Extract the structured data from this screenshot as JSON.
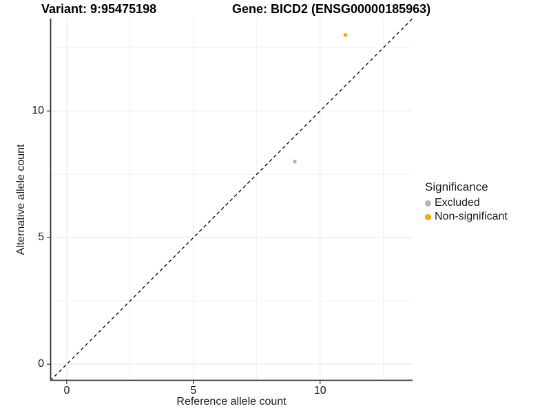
{
  "chart_data": {
    "type": "scatter",
    "title_left": "Variant: 9:95475198",
    "title_right": "Gene: BICD2 (ENSG00000185963)",
    "xlabel": "Reference allele count",
    "ylabel": "Alternative allele count",
    "xlim": [
      -0.65,
      13.65
    ],
    "ylim": [
      -0.65,
      13.65
    ],
    "x_ticks": [
      0,
      5,
      10
    ],
    "y_ticks": [
      0,
      5,
      10
    ],
    "major_gridlines": [
      0,
      5,
      10
    ],
    "minor_gridlines": [
      2.5,
      7.5,
      12.5
    ],
    "grid": true,
    "identity_line": {
      "style": "dashed",
      "color": "#000000",
      "from": -0.65,
      "to": 13.65
    },
    "series": [
      {
        "name": "Excluded",
        "color": "#b3b3b3",
        "points": [
          [
            9,
            8
          ]
        ]
      },
      {
        "name": "Non-significant",
        "color": "#FFA500",
        "points": [
          [
            11,
            13
          ]
        ]
      }
    ],
    "legend": {
      "title": "Significance",
      "position": "right"
    }
  }
}
